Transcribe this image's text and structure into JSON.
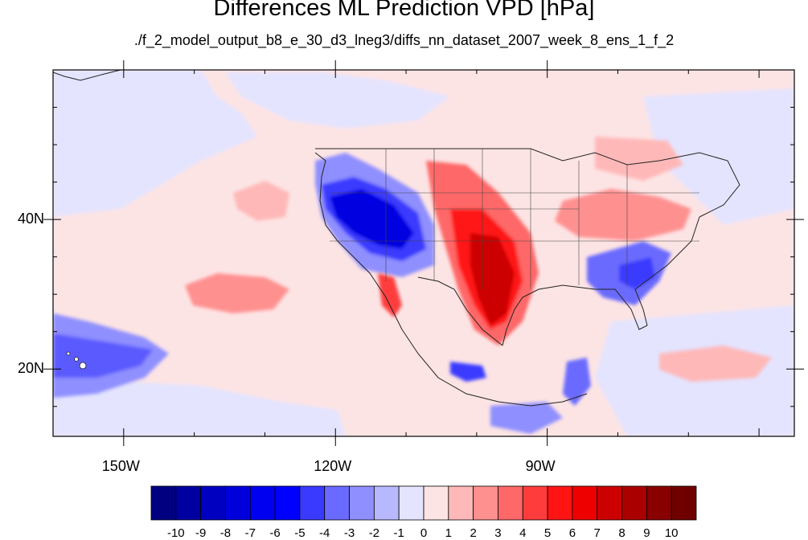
{
  "title": "Differences ML Prediction VPD [hPa]",
  "subtitle": "./f_2_model_output_b8_e_30_d3_lneg3/diffs_nn_dataset_2007_week_8_ens_1_f_2",
  "map": {
    "projection": "lat-lon",
    "lon_range": [
      -160,
      -55
    ],
    "lat_range": [
      11,
      60
    ],
    "lat_ticks": [
      {
        "value": 40,
        "label": "40N"
      },
      {
        "value": 20,
        "label": "20N"
      }
    ],
    "lon_ticks": [
      {
        "value": -150,
        "label": "150W"
      },
      {
        "value": -120,
        "label": "120W"
      },
      {
        "value": -90,
        "label": "90W"
      }
    ],
    "background_color": "#fde4e4"
  },
  "colorbar": {
    "labels": [
      "-10",
      "-9",
      "-8",
      "-7",
      "-6",
      "-5",
      "-4",
      "-3",
      "-2",
      "-1",
      "0",
      "1",
      "2",
      "3",
      "4",
      "5",
      "6",
      "7",
      "8",
      "9",
      "10"
    ],
    "colors": [
      "#000080",
      "#0000a0",
      "#0000c0",
      "#0000dd",
      "#0000f0",
      "#0000ff",
      "#3a3aff",
      "#6a6aff",
      "#8f8fff",
      "#b8b8ff",
      "#e4e4ff",
      "#fde4e4",
      "#ffb8b8",
      "#ff9090",
      "#ff6868",
      "#ff3c3c",
      "#ff1414",
      "#ee0000",
      "#cc0000",
      "#aa0000",
      "#880000",
      "#700000"
    ]
  },
  "regions": [
    {
      "name": "west-us-negative",
      "level": "-6",
      "color": "#2222e8"
    },
    {
      "name": "plains-positive",
      "level": "6",
      "color": "#e01010"
    },
    {
      "name": "hawaii-negative",
      "level": "-4",
      "color": "#5a5aff"
    }
  ]
}
